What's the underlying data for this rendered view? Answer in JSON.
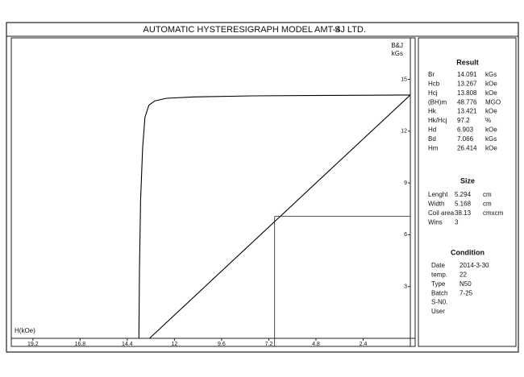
{
  "header": {
    "title": "AUTOMATIC HYSTERESIGRAPH MODEL AMT-4",
    "maker": "SJ LTD."
  },
  "chart_data": {
    "type": "line",
    "ylabel": "B&J",
    "yunit": "kGs",
    "xlabel": "H(kOe)",
    "xlim": [
      20.3,
      0
    ],
    "ylim": [
      0,
      17.4
    ],
    "xticks": [
      19.2,
      16.8,
      14.4,
      12,
      9.6,
      7.2,
      4.8,
      2.4
    ],
    "yticks": [
      3,
      6,
      9,
      12,
      15
    ],
    "series": [
      {
        "color": "#000000",
        "x": [
          13.808,
          13.78,
          13.72,
          13.62,
          13.5,
          13.3,
          13.0,
          12.4,
          11,
          8,
          4,
          0
        ],
        "values": [
          0,
          4,
          8,
          11,
          12.8,
          13.5,
          13.75,
          13.9,
          13.98,
          14.04,
          14.07,
          14.091
        ]
      },
      {
        "color": "#000000",
        "x": [
          13.267,
          0
        ],
        "values": [
          0,
          14.091
        ]
      }
    ],
    "operating_point": {
      "x": 6.903,
      "y": 7.066
    }
  },
  "panel": {
    "result": {
      "title": "Result",
      "rows": [
        {
          "label": "Br",
          "value": 14.091,
          "unit": "kGs"
        },
        {
          "label": "Hcb",
          "value": 13.267,
          "unit": "kOe"
        },
        {
          "label": "Hcj",
          "value": 13.808,
          "unit": "kOe"
        },
        {
          "label": "(BH)m",
          "value": 48.776,
          "unit": "MGO"
        },
        {
          "label": "Hk",
          "value": 13.421,
          "unit": "kOe"
        },
        {
          "label": "Hk/Hcj",
          "value": 97.2,
          "unit": "%"
        },
        {
          "label": "Hd",
          "value": 6.903,
          "unit": "kOe"
        },
        {
          "label": "Bd",
          "value": 7.066,
          "unit": "kGs"
        },
        {
          "label": "Hm",
          "value": 26.414,
          "unit": "kOe"
        }
      ]
    },
    "size": {
      "title": "Size",
      "rows": [
        {
          "label": "Lenght",
          "value": 5.294,
          "unit": "cm"
        },
        {
          "label": "Width",
          "value": 5.168,
          "unit": "cm"
        },
        {
          "label": "Coil area",
          "value": 38.13,
          "unit": "cmxcm"
        },
        {
          "label": "Wins",
          "value": 3
        }
      ]
    },
    "condition": {
      "title": "Condition",
      "rows": [
        {
          "label": "Date",
          "value": "2014-3-30"
        },
        {
          "label": "temp.",
          "value": 22
        },
        {
          "label": "Type",
          "value": "N50"
        },
        {
          "label": "Batch",
          "value": "7-25"
        },
        {
          "label": "S-N0."
        },
        {
          "label": "User"
        }
      ]
    }
  }
}
